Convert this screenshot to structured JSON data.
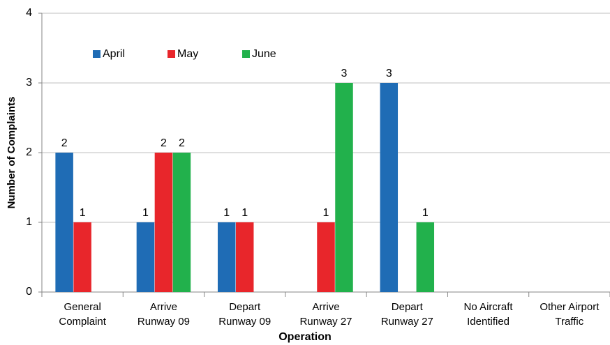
{
  "chart_data": {
    "type": "bar",
    "xlabel": "Operation",
    "ylabel": "Number of Complaints",
    "categories": [
      "General\nComplaint",
      "Arrive\nRunway 09",
      "Depart\nRunway 09",
      "Arrive\nRunway 27",
      "Depart\nRunway 27",
      "No Aircraft\nIdentified",
      "Other Airport\nTraffic"
    ],
    "series": [
      {
        "name": "April",
        "color": "#1f6cb5",
        "values": [
          2,
          1,
          1,
          null,
          3,
          null,
          null
        ]
      },
      {
        "name": "May",
        "color": "#e8262b",
        "values": [
          1,
          2,
          1,
          1,
          null,
          null,
          null
        ]
      },
      {
        "name": "June",
        "color": "#22b14c",
        "values": [
          null,
          2,
          null,
          3,
          1,
          null,
          null
        ]
      }
    ],
    "ylim": [
      0,
      4
    ],
    "yticks": [
      0,
      1,
      2,
      3,
      4
    ],
    "grid": true,
    "legend": "top-left"
  }
}
